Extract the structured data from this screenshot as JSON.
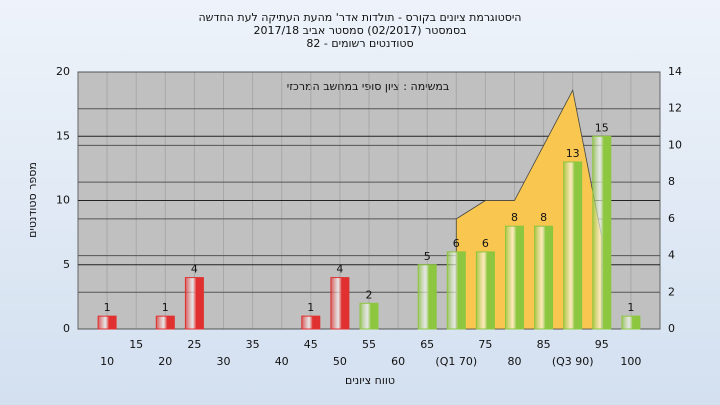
{
  "chart_data": {
    "type": "bar",
    "title": "היסטוגרמת ציונים בקורס - תולדות אדר' מהעת העתיקה לעת החדשה",
    "subtitle": [
      "בסמסטר  (02/2017)  סמסטר אביב 2017/18",
      "סטודנטים רשומים - 82"
    ],
    "annotation": "במשימה : ציון סופי במחשב המרכזי",
    "ylabel": "מספר סטודנטים",
    "xlabel": "טווח ציונים",
    "x": [
      10,
      20,
      25,
      45,
      50,
      55,
      65,
      70,
      75,
      80,
      85,
      90,
      95,
      100
    ],
    "values": [
      1,
      1,
      4,
      1,
      4,
      2,
      5,
      6,
      6,
      8,
      8,
      13,
      15,
      1
    ],
    "colors": [
      "#e03030",
      "#e03030",
      "#e03030",
      "#e03030",
      "#e03030",
      "#8dc63f",
      "#8dc63f",
      "#8dc63f",
      "#8dc63f",
      "#8dc63f",
      "#8dc63f",
      "#8dc63f",
      "#8dc63f",
      "#8dc63f"
    ],
    "area": {
      "x": [
        70,
        75,
        80,
        85,
        90,
        95
      ],
      "values": [
        6,
        7,
        7,
        10,
        13,
        5
      ],
      "color": "#f9c74f",
      "axis": "y2"
    },
    "xlim": [
      5,
      105
    ],
    "xticks": [
      10,
      15,
      20,
      25,
      30,
      35,
      40,
      45,
      50,
      55,
      60,
      65,
      {
        "value": 70,
        "label": "(Q1 70)"
      },
      75,
      80,
      85,
      {
        "value": 90,
        "label": "(Q3 90)"
      },
      95,
      100
    ],
    "ylim": [
      0,
      20
    ],
    "yticks": [
      0,
      5,
      10,
      15,
      20
    ],
    "y2lim": [
      0,
      14
    ],
    "y2ticks": [
      0,
      2,
      4,
      6,
      8,
      10,
      12,
      14
    ],
    "grid": true
  }
}
